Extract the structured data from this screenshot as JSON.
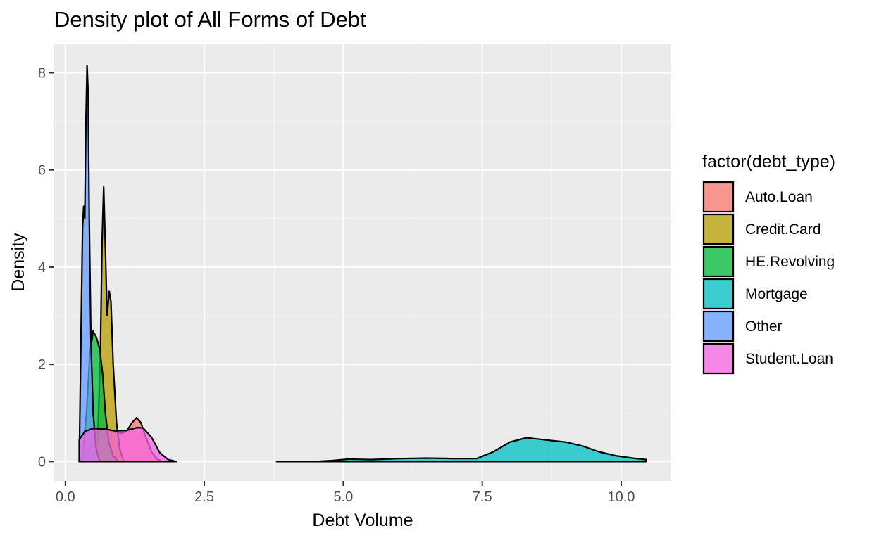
{
  "chart_data": {
    "type": "area",
    "title": "Density plot of All Forms of Debt",
    "xlabel": "Debt Volume",
    "ylabel": "Density",
    "xlim": [
      -0.2,
      10.9
    ],
    "ylim": [
      -0.4,
      8.6
    ],
    "x_ticks": [
      0,
      2.5,
      5,
      7.5,
      10
    ],
    "x_tick_labels": [
      "0.0",
      "2.5",
      "5.0",
      "7.5",
      "10.0"
    ],
    "y_ticks": [
      0,
      2,
      4,
      6,
      8
    ],
    "y_tick_labels": [
      "0",
      "2",
      "4",
      "6",
      "8"
    ],
    "grid": true,
    "legend": {
      "title": "factor(debt_type)",
      "position": "right"
    },
    "series": [
      {
        "name": "Auto.Loan",
        "color": "#F8766D",
        "points": [
          [
            0.25,
            0.0
          ],
          [
            0.4,
            0.2
          ],
          [
            0.6,
            0.5
          ],
          [
            0.8,
            0.62
          ],
          [
            1.0,
            0.58
          ],
          [
            1.1,
            0.62
          ],
          [
            1.2,
            0.8
          ],
          [
            1.28,
            0.9
          ],
          [
            1.36,
            0.8
          ],
          [
            1.45,
            0.5
          ],
          [
            1.55,
            0.2
          ],
          [
            1.65,
            0.05
          ],
          [
            1.75,
            0.0
          ]
        ]
      },
      {
        "name": "Credit.Card",
        "color": "#B79F00",
        "points": [
          [
            0.45,
            0.0
          ],
          [
            0.58,
            0.4
          ],
          [
            0.63,
            2.2
          ],
          [
            0.66,
            4.5
          ],
          [
            0.69,
            5.65
          ],
          [
            0.72,
            4.4
          ],
          [
            0.75,
            3.0
          ],
          [
            0.79,
            3.5
          ],
          [
            0.82,
            3.3
          ],
          [
            0.86,
            2.0
          ],
          [
            0.92,
            0.8
          ],
          [
            0.98,
            0.25
          ],
          [
            1.05,
            0.0
          ]
        ]
      },
      {
        "name": "HE.Revolving",
        "color": "#00BA38",
        "points": [
          [
            0.3,
            0.0
          ],
          [
            0.38,
            1.0
          ],
          [
            0.44,
            2.2
          ],
          [
            0.5,
            2.68
          ],
          [
            0.56,
            2.55
          ],
          [
            0.62,
            2.3
          ],
          [
            0.67,
            1.8
          ],
          [
            0.72,
            1.0
          ],
          [
            0.78,
            0.4
          ],
          [
            0.86,
            0.12
          ],
          [
            0.95,
            0.0
          ]
        ]
      },
      {
        "name": "Mortgage",
        "color": "#00BFC4",
        "points": [
          [
            3.8,
            0.0
          ],
          [
            4.5,
            0.0
          ],
          [
            4.8,
            0.02
          ],
          [
            5.1,
            0.05
          ],
          [
            5.5,
            0.04
          ],
          [
            6.0,
            0.06
          ],
          [
            6.5,
            0.07
          ],
          [
            7.0,
            0.06
          ],
          [
            7.4,
            0.06
          ],
          [
            7.7,
            0.2
          ],
          [
            8.0,
            0.4
          ],
          [
            8.3,
            0.49
          ],
          [
            8.6,
            0.45
          ],
          [
            9.0,
            0.4
          ],
          [
            9.3,
            0.32
          ],
          [
            9.6,
            0.2
          ],
          [
            9.9,
            0.12
          ],
          [
            10.2,
            0.07
          ],
          [
            10.45,
            0.04
          ]
        ]
      },
      {
        "name": "Other",
        "color": "#619CFF",
        "points": [
          [
            0.25,
            0.0
          ],
          [
            0.28,
            2.5
          ],
          [
            0.31,
            4.8
          ],
          [
            0.33,
            5.25
          ],
          [
            0.35,
            5.0
          ],
          [
            0.37,
            7.0
          ],
          [
            0.39,
            8.15
          ],
          [
            0.41,
            7.6
          ],
          [
            0.43,
            5.0
          ],
          [
            0.46,
            2.5
          ],
          [
            0.5,
            1.0
          ],
          [
            0.55,
            0.3
          ],
          [
            0.6,
            0.05
          ],
          [
            0.65,
            0.0
          ]
        ]
      },
      {
        "name": "Student.Loan",
        "color": "#F564E3",
        "points": [
          [
            0.25,
            0.45
          ],
          [
            0.35,
            0.62
          ],
          [
            0.5,
            0.68
          ],
          [
            0.7,
            0.67
          ],
          [
            0.9,
            0.63
          ],
          [
            1.1,
            0.64
          ],
          [
            1.3,
            0.7
          ],
          [
            1.4,
            0.69
          ],
          [
            1.55,
            0.5
          ],
          [
            1.7,
            0.18
          ],
          [
            1.85,
            0.04
          ],
          [
            2.0,
            0.0
          ]
        ]
      }
    ]
  }
}
